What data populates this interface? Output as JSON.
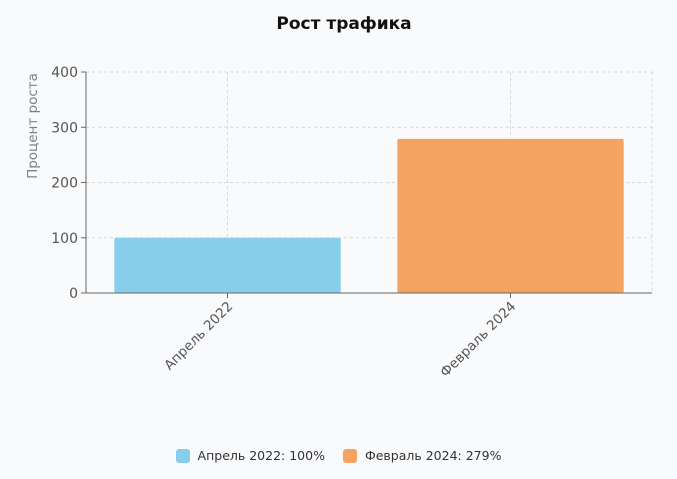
{
  "chart_data": {
    "type": "bar",
    "title": "Рост трафика",
    "ylabel": "Процент роста",
    "xlabel": "",
    "ylim": [
      0,
      400
    ],
    "yticks": [
      0,
      100,
      200,
      300,
      400
    ],
    "grid": true,
    "categories": [
      "Апрель 2022",
      "Февраль 2024"
    ],
    "values": [
      100,
      279
    ],
    "colors": [
      "#87ceeb",
      "#f4a460"
    ],
    "legend_position": "bottom",
    "legend": [
      {
        "label": "Апрель 2022: 100%",
        "color": "#87ceeb"
      },
      {
        "label": "Февраль 2024: 279%",
        "color": "#f4a460"
      }
    ]
  }
}
